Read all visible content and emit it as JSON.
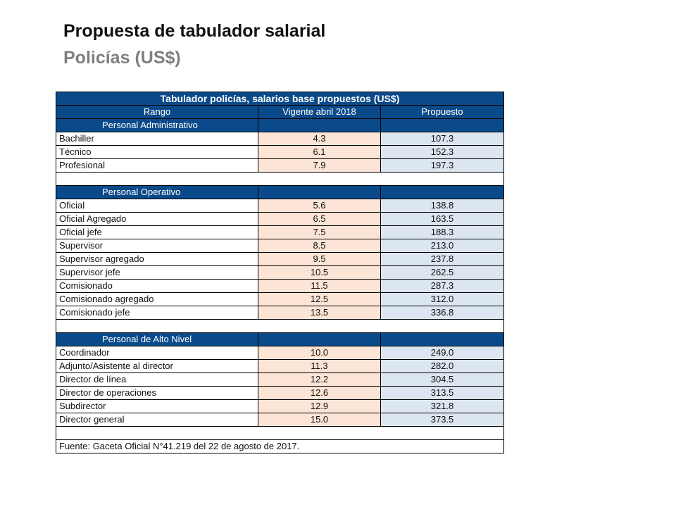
{
  "slide": {
    "title": "Propuesta de tabulador salarial",
    "subtitle": "Policías (US$)"
  },
  "table": {
    "title": "Tabulador policías, salarios base propuestos (US$)",
    "columns": [
      "Rango",
      "Vigente abril 2018",
      "Propuesto"
    ],
    "groups": [
      {
        "name": "Personal Administrativo",
        "rows": [
          {
            "rank": "Bachiller",
            "current": "4.3",
            "proposed": "107.3"
          },
          {
            "rank": "Técnico",
            "current": "6.1",
            "proposed": "152.3"
          },
          {
            "rank": "Profesional",
            "current": "7.9",
            "proposed": "197.3"
          }
        ]
      },
      {
        "name": "Personal Operativo",
        "rows": [
          {
            "rank": "Oficial",
            "current": "5.6",
            "proposed": "138.8"
          },
          {
            "rank": "Oficial Agregado",
            "current": "6.5",
            "proposed": "163.5"
          },
          {
            "rank": "Oficial jefe",
            "current": "7.5",
            "proposed": "188.3"
          },
          {
            "rank": "Supervisor",
            "current": "8.5",
            "proposed": "213.0"
          },
          {
            "rank": "Supervisor agregado",
            "current": "9.5",
            "proposed": "237.8"
          },
          {
            "rank": "Supervisor jefe",
            "current": "10.5",
            "proposed": "262.5"
          },
          {
            "rank": "Comisionado",
            "current": "11.5",
            "proposed": "287.3"
          },
          {
            "rank": "Comisionado agregado",
            "current": "12.5",
            "proposed": "312.0"
          },
          {
            "rank": "Comisionado jefe",
            "current": "13.5",
            "proposed": "336.8"
          }
        ]
      },
      {
        "name": "Personal de Alto Nivel",
        "rows": [
          {
            "rank": "Coordinador",
            "current": "10.0",
            "proposed": "249.0"
          },
          {
            "rank": "Adjunto/Asistente al director",
            "current": "11.3",
            "proposed": "282.0"
          },
          {
            "rank": "Director de línea",
            "current": "12.2",
            "proposed": "304.5"
          },
          {
            "rank": "Director de operaciones",
            "current": "12.6",
            "proposed": "313.5"
          },
          {
            "rank": "Subdirector",
            "current": "12.9",
            "proposed": "321.8"
          },
          {
            "rank": "Director general",
            "current": "15.0",
            "proposed": "373.5"
          }
        ]
      }
    ],
    "source": "Fuente: Gaceta Oficial N°41.219 del 22 de agosto de 2017."
  },
  "colors": {
    "header_blue": "#0b4a8a",
    "current_fill": "#fce4d6",
    "proposed_fill": "#dce6f1",
    "subtitle_gray": "#7f7f7f"
  }
}
